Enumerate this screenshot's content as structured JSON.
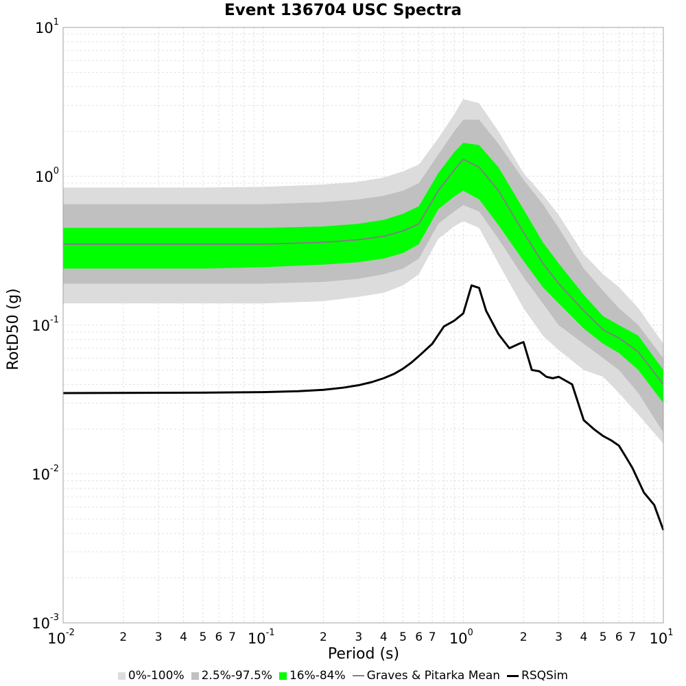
{
  "chart_data": {
    "type": "line",
    "title": "Event 136704 USC Spectra",
    "xlabel": "Period (s)",
    "ylabel": "RotD50 (g)",
    "x_scale": "log",
    "y_scale": "log",
    "xlim": [
      0.01,
      10
    ],
    "ylim": [
      0.001,
      10
    ],
    "grid": true,
    "legend_position": "bottom",
    "x_ticks": {
      "major": [
        {
          "base": "10",
          "exp": "-2"
        },
        {
          "base": "10",
          "exp": "-1"
        },
        {
          "base": "10",
          "exp": "0"
        },
        {
          "base": "10",
          "exp": "1"
        }
      ],
      "minor_labels": [
        "2",
        "3",
        "4",
        "5",
        "6",
        "7"
      ]
    },
    "y_ticks": {
      "major": [
        {
          "base": "10",
          "exp": "-3"
        },
        {
          "base": "10",
          "exp": "-2"
        },
        {
          "base": "10",
          "exp": "-1"
        },
        {
          "base": "10",
          "exp": "0"
        },
        {
          "base": "10",
          "exp": "1"
        }
      ]
    },
    "x": [
      0.01,
      0.05,
      0.1,
      0.2,
      0.3,
      0.4,
      0.5,
      0.6,
      0.75,
      0.9,
      1.0,
      1.2,
      1.5,
      2.0,
      2.5,
      3.0,
      4.0,
      5.0,
      6.0,
      7.5,
      10.0
    ],
    "bands": [
      {
        "name": "0%-100%",
        "color": "#dcdcdc",
        "lower": [
          0.14,
          0.14,
          0.14,
          0.145,
          0.155,
          0.165,
          0.185,
          0.22,
          0.38,
          0.46,
          0.5,
          0.45,
          0.26,
          0.13,
          0.085,
          0.068,
          0.05,
          0.045,
          0.035,
          0.025,
          0.016
        ],
        "upper": [
          0.84,
          0.84,
          0.85,
          0.88,
          0.92,
          0.98,
          1.08,
          1.2,
          1.8,
          2.6,
          3.3,
          3.1,
          2.0,
          1.05,
          0.75,
          0.55,
          0.3,
          0.22,
          0.18,
          0.13,
          0.075
        ]
      },
      {
        "name": "2.5%-97.5%",
        "color": "#c0c0c0",
        "lower": [
          0.19,
          0.19,
          0.19,
          0.195,
          0.205,
          0.22,
          0.24,
          0.28,
          0.48,
          0.58,
          0.64,
          0.58,
          0.38,
          0.21,
          0.14,
          0.1,
          0.075,
          0.06,
          0.05,
          0.035,
          0.019
        ],
        "upper": [
          0.65,
          0.65,
          0.65,
          0.67,
          0.7,
          0.74,
          0.8,
          0.9,
          1.4,
          2.0,
          2.4,
          2.4,
          1.65,
          0.95,
          0.65,
          0.45,
          0.24,
          0.17,
          0.13,
          0.1,
          0.06
        ]
      },
      {
        "name": "16%-84%",
        "color": "#00ff00",
        "lower": [
          0.24,
          0.24,
          0.245,
          0.255,
          0.265,
          0.28,
          0.305,
          0.35,
          0.6,
          0.73,
          0.8,
          0.7,
          0.47,
          0.27,
          0.18,
          0.14,
          0.095,
          0.075,
          0.065,
          0.05,
          0.03
        ],
        "upper": [
          0.45,
          0.45,
          0.45,
          0.46,
          0.48,
          0.51,
          0.56,
          0.63,
          1.05,
          1.45,
          1.68,
          1.62,
          1.15,
          0.6,
          0.36,
          0.26,
          0.16,
          0.115,
          0.1,
          0.085,
          0.05
        ]
      }
    ],
    "series": [
      {
        "name": "Graves & Pitarka Mean",
        "color": "#808080",
        "values": [
          0.35,
          0.35,
          0.35,
          0.36,
          0.375,
          0.395,
          0.43,
          0.48,
          0.8,
          1.1,
          1.3,
          1.15,
          0.8,
          0.42,
          0.26,
          0.19,
          0.125,
          0.093,
          0.082,
          0.066,
          0.04
        ]
      },
      {
        "name": "RSQSim",
        "color": "#000000",
        "points": [
          [
            0.01,
            0.035
          ],
          [
            0.05,
            0.0352
          ],
          [
            0.1,
            0.0355
          ],
          [
            0.15,
            0.036
          ],
          [
            0.2,
            0.0368
          ],
          [
            0.25,
            0.038
          ],
          [
            0.3,
            0.0395
          ],
          [
            0.35,
            0.0415
          ],
          [
            0.4,
            0.044
          ],
          [
            0.45,
            0.047
          ],
          [
            0.5,
            0.051
          ],
          [
            0.55,
            0.056
          ],
          [
            0.6,
            0.062
          ],
          [
            0.7,
            0.075
          ],
          [
            0.8,
            0.098
          ],
          [
            0.9,
            0.107
          ],
          [
            1.0,
            0.12
          ],
          [
            1.1,
            0.185
          ],
          [
            1.2,
            0.178
          ],
          [
            1.3,
            0.125
          ],
          [
            1.5,
            0.087
          ],
          [
            1.7,
            0.07
          ],
          [
            1.9,
            0.075
          ],
          [
            2.0,
            0.077
          ],
          [
            2.2,
            0.05
          ],
          [
            2.4,
            0.049
          ],
          [
            2.6,
            0.045
          ],
          [
            2.8,
            0.044
          ],
          [
            3.0,
            0.045
          ],
          [
            3.5,
            0.04
          ],
          [
            4.0,
            0.023
          ],
          [
            4.5,
            0.02
          ],
          [
            5.0,
            0.018
          ],
          [
            5.5,
            0.0168
          ],
          [
            6.0,
            0.0155
          ],
          [
            6.5,
            0.013
          ],
          [
            7.0,
            0.011
          ],
          [
            8.0,
            0.0075
          ],
          [
            9.0,
            0.0062
          ],
          [
            10.0,
            0.0042
          ]
        ]
      }
    ]
  }
}
